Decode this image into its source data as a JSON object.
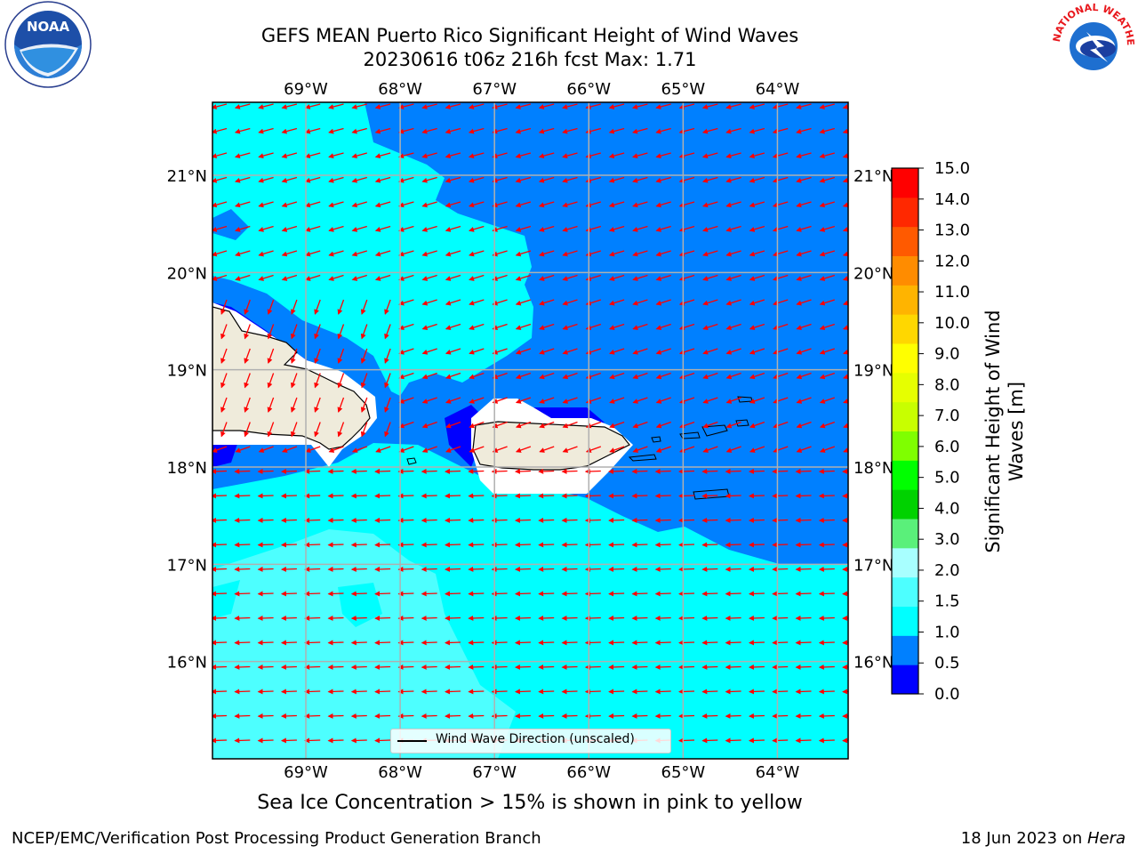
{
  "header": {
    "title_line1": "GEFS MEAN Puerto Rico Significant Height of Wind Waves",
    "title_line2": "20230616 t06z 216h fcst   Max: 1.71"
  },
  "logos": {
    "left": "NOAA",
    "right_text": "NATIONAL WEATHER SERVICE",
    "left_ring_text": "NATIONAL OCEANIC AND ATMOSPHERIC ADMINISTRATION · U.S. DEPARTMENT OF COMMERCE"
  },
  "map": {
    "lon_labels": [
      "69°W",
      "68°W",
      "67°W",
      "66°W",
      "65°W",
      "64°W"
    ],
    "lon_values": [
      -69,
      -68,
      -67,
      -66,
      -65,
      -64
    ],
    "lat_labels": [
      "21°N",
      "20°N",
      "19°N",
      "18°N",
      "17°N",
      "16°N"
    ],
    "lat_values": [
      21,
      20,
      19,
      18,
      17,
      16
    ],
    "extent": {
      "lon_min": -69.99,
      "lon_max": -63.25,
      "lat_min": 15.0,
      "lat_max": 21.75
    },
    "arrow_color": "#ff0000",
    "land_color": "#efebdb",
    "legend_label": "Wind Wave Direction (unscaled)"
  },
  "colorbar": {
    "label": "Significant Height of Wind Waves [m]",
    "ticks": [
      "15.0",
      "14.0",
      "13.0",
      "12.0",
      "11.0",
      "10.0",
      "9.0",
      "8.0",
      "7.0",
      "6.0",
      "5.0",
      "4.0",
      "3.0",
      "2.0",
      "1.5",
      "1.0",
      "0.5",
      "0.0"
    ],
    "colors": [
      "#0000ff",
      "#0080ff",
      "#00ffff",
      "#4dffff",
      "#a8ffff",
      "#5af07a",
      "#00d200",
      "#00ff00",
      "#7fff00",
      "#c8ff00",
      "#e6ff00",
      "#ffff00",
      "#ffd700",
      "#ffb400",
      "#ff8c00",
      "#ff5a00",
      "#ff2800",
      "#ff0000"
    ]
  },
  "subtitle": "Sea Ice Concentration > 15% is shown in pink to yellow",
  "footer": {
    "left": "NCEP/EMC/Verification Post Processing Product Generation Branch",
    "right_date": "18 Jun 2023 on ",
    "right_host": "Hera"
  }
}
